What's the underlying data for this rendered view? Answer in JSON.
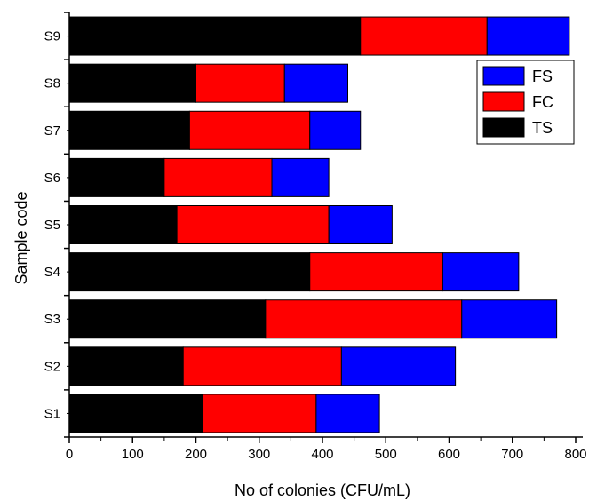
{
  "chart_data": {
    "type": "bar",
    "orientation": "horizontal",
    "stacked": true,
    "categories": [
      "S1",
      "S2",
      "S3",
      "S4",
      "S5",
      "S6",
      "S7",
      "S8",
      "S9"
    ],
    "series": [
      {
        "name": "TS",
        "color": "#000000",
        "values": [
          210,
          180,
          310,
          380,
          170,
          150,
          190,
          200,
          460
        ]
      },
      {
        "name": "FC",
        "color": "#ff0000",
        "values": [
          180,
          250,
          310,
          210,
          240,
          170,
          190,
          140,
          200
        ]
      },
      {
        "name": "FS",
        "color": "#0000ff",
        "values": [
          100,
          180,
          150,
          120,
          100,
          90,
          80,
          100,
          130
        ]
      }
    ],
    "xlabel": "No of colonies (CFU/mL)",
    "ylabel": "Sample code",
    "xlim": [
      0,
      800
    ],
    "xticks": [
      0,
      100,
      200,
      300,
      400,
      500,
      600,
      700,
      800
    ],
    "grid": false,
    "legend_position": "top-right",
    "legend_order": [
      "FS",
      "FC",
      "TS"
    ]
  }
}
